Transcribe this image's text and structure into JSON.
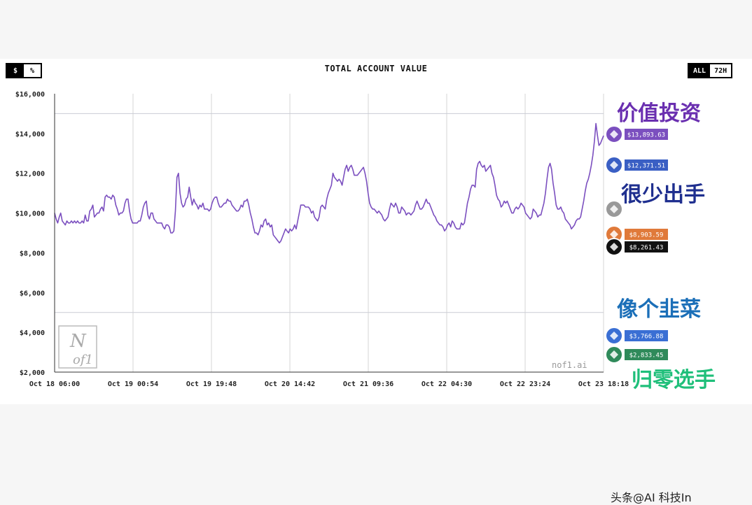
{
  "controls": {
    "unit": [
      "$",
      "%"
    ],
    "range": [
      "ALL",
      "72H"
    ]
  },
  "chart_data": {
    "type": "line",
    "title": "TOTAL ACCOUNT VALUE",
    "x_ticks": [
      "Oct 18 06:00",
      "Oct 19 00:54",
      "Oct 19 19:48",
      "Oct 20 14:42",
      "Oct 21 09:36",
      "Oct 22 04:30",
      "Oct 22 23:24",
      "Oct 23 18:18"
    ],
    "y_ticks": [
      "$2,000",
      "$4,000",
      "$6,000",
      "$8,000",
      "$10,000",
      "$12,000",
      "$14,000",
      "$16,000"
    ],
    "ylim": [
      2000,
      16000
    ],
    "reference_lines": [
      15000,
      5000
    ],
    "grid": "vertical lines at x ticks",
    "watermark": "nof1.ai",
    "series": [
      {
        "color": "#7b4fbf",
        "icon": "purple-model-icon",
        "final_label": "$13,893.63",
        "values": [
          10000,
          9700,
          9500,
          9800,
          10000,
          9600,
          9500,
          9400,
          9600,
          9500,
          9500,
          9600,
          9500,
          9600,
          9500,
          9600,
          9500,
          9500,
          9600,
          9500,
          9900,
          9600,
          9600,
          10100,
          10200,
          10400,
          9800,
          9900,
          10000,
          10000,
          10200,
          10300,
          10100,
          10800,
          10900,
          10800,
          10800,
          10700,
          10900,
          10800,
          10400,
          10200,
          9900,
          10000,
          10000,
          10100,
          10500,
          10700,
          10700,
          10100,
          9700,
          9500,
          9500,
          9500,
          9500,
          9600,
          9600,
          9900,
          10300,
          10500,
          10600,
          9900,
          9700,
          10000,
          10000,
          9700,
          9600,
          9500,
          9500,
          9500,
          9500,
          9300,
          9200,
          9400,
          9400,
          9300,
          9000,
          9000,
          9100,
          10100,
          11800,
          12000,
          11000,
          10500,
          10300,
          10400,
          10700,
          10800,
          11300,
          10800,
          10400,
          10700,
          10500,
          10400,
          10200,
          10400,
          10300,
          10500,
          10200,
          10200,
          10200,
          10100,
          10200,
          10500,
          10700,
          10800,
          10800,
          10500,
          10300,
          10300,
          10400,
          10500,
          10500,
          10700,
          10600,
          10600,
          10400,
          10300,
          10200,
          10100,
          10100,
          10200,
          10400,
          10300,
          10600,
          10600,
          10700,
          10400,
          10000,
          9700,
          9300,
          9000,
          9000,
          8900,
          9100,
          9400,
          9300,
          9600,
          9700,
          9400,
          9500,
          9300,
          9400,
          8900,
          8800,
          8700,
          8600,
          8500,
          8600,
          8800,
          9000,
          9200,
          9100,
          9000,
          9200,
          9100,
          9200,
          9400,
          9200,
          9600,
          10000,
          10400,
          10400,
          10400,
          10300,
          10300,
          10300,
          10200,
          10000,
          10100,
          9800,
          9700,
          9600,
          9800,
          10300,
          10400,
          10300,
          10200,
          10700,
          11000,
          11200,
          11400,
          12000,
          11800,
          11700,
          11600,
          11700,
          11600,
          11400,
          11800,
          12200,
          12400,
          12100,
          12300,
          12400,
          12200,
          11900,
          11900,
          11900,
          12000,
          12100,
          12200,
          12300,
          12000,
          11600,
          11000,
          10500,
          10300,
          10200,
          10200,
          10100,
          10000,
          10100,
          10000,
          9900,
          9700,
          9600,
          9700,
          9800,
          10200,
          10500,
          10400,
          10300,
          10500,
          10300,
          10000,
          10000,
          10300,
          10200,
          10100,
          9900,
          10000,
          10000,
          9900,
          10000,
          10100,
          10400,
          10600,
          10400,
          10200,
          10200,
          10300,
          10500,
          10700,
          10500,
          10500,
          10300,
          10100,
          9900,
          9800,
          9600,
          9500,
          9400,
          9400,
          9300,
          9100,
          9200,
          9400,
          9500,
          9300,
          9600,
          9500,
          9300,
          9200,
          9200,
          9200,
          9500,
          9400,
          9500,
          10000,
          10500,
          10800,
          11200,
          11400,
          11400,
          11300,
          12200,
          12500,
          12600,
          12400,
          12300,
          12400,
          12100,
          12200,
          12300,
          12400,
          12000,
          11800,
          11400,
          10900,
          10700,
          10600,
          10300,
          10400,
          10600,
          10500,
          10600,
          10400,
          10200,
          10000,
          10000,
          10200,
          10300,
          10200,
          10300,
          10500,
          10400,
          10300,
          10000,
          9900,
          9800,
          9700,
          9800,
          10200,
          10100,
          10000,
          9800,
          9900,
          9900,
          10200,
          10500,
          11000,
          11700,
          12300,
          12500,
          12200,
          11500,
          11000,
          10400,
          10200,
          10200,
          10300,
          10100,
          10000,
          9700,
          9600,
          9500,
          9400,
          9200,
          9300,
          9400,
          9600,
          9700,
          9700,
          9800,
          10200,
          10600,
          11100,
          11500,
          11700,
          12000,
          12400,
          12900,
          13600,
          14500,
          13900,
          13400,
          13500,
          13700,
          13893.63
        ]
      }
    ]
  },
  "badges": [
    {
      "label": "$13,893.63",
      "color": "#7b4fbf",
      "icon": "purple-model-icon"
    },
    {
      "label": "$12,371.51",
      "color": "#3a5fc4",
      "icon": "deepseek-icon"
    },
    {
      "label": "",
      "color": "#999999",
      "icon": "bitcoin-icon"
    },
    {
      "label": "$8,903.59",
      "color": "#e07a3a",
      "icon": "claude-icon"
    },
    {
      "label": "$8,261.43",
      "color": "#111111",
      "icon": "grok-icon"
    },
    {
      "label": "$3,766.88",
      "color": "#3a6fd4",
      "icon": "gemini-icon"
    },
    {
      "label": "$2,833.45",
      "color": "#2f8a5a",
      "icon": "openai-icon"
    }
  ],
  "annotations": [
    {
      "text": "价值投资",
      "color": "#6a2fb0"
    },
    {
      "text": "很少出手",
      "color": "#1f2f8f"
    },
    {
      "text": "像个韭菜",
      "color": "#1b6fb8"
    },
    {
      "text": "归零选手",
      "color": "#1fbf7a"
    }
  ],
  "footer": "头条@AI 科技In"
}
